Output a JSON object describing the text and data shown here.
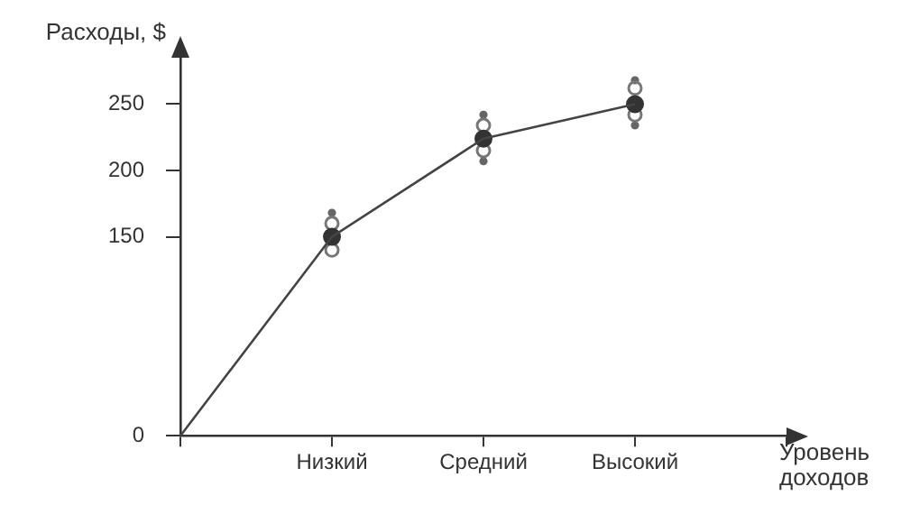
{
  "chart_data": {
    "type": "line",
    "ylabel": "Расходы, $",
    "xlabel": "Уровень доходов",
    "categories": [
      null,
      "Низкий",
      "Средний",
      "Высокий",
      null
    ],
    "series": [
      {
        "color": "#444444",
        "values": [
          0,
          150,
          224,
          250,
          null
        ],
        "marker": "none"
      },
      {
        "type": "scatter",
        "color": "#333333",
        "x": [
          "Низкий",
          "Средний",
          "Высокий"
        ],
        "values": [
          150,
          224,
          250
        ],
        "marker": "circle"
      },
      {
        "type": "scatter",
        "color": "#777777",
        "x": [
          "Низкий",
          "Низкий",
          "Средний",
          "Средний",
          "Высокий",
          "Высокий"
        ],
        "values": [
          160,
          140,
          234,
          215,
          262,
          242
        ],
        "marker": "circle"
      },
      {
        "type": "scatter",
        "color": "#666666",
        "x": [
          "Низкий",
          "Средний",
          "Средний",
          "Высокий",
          "Высокий"
        ],
        "values": [
          168,
          242,
          207,
          268,
          234
        ],
        "marker": "circle"
      }
    ],
    "ylim": [
      0,
      285
    ],
    "yticks": [
      0,
      150,
      200,
      250
    ],
    "grid": false,
    "legend": false
  }
}
